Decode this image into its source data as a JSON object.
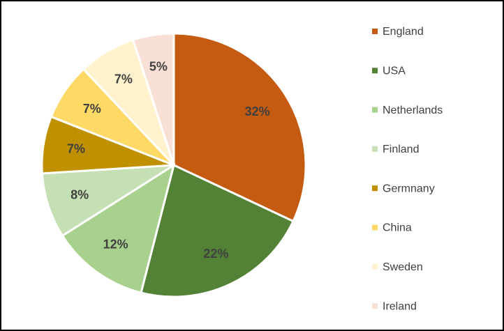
{
  "chart_data": {
    "type": "pie",
    "categories": [
      "England",
      "USA",
      "Netherlands",
      "Finland",
      "Germnany",
      "China",
      "Sweden",
      "Ireland"
    ],
    "values": [
      32,
      22,
      12,
      8,
      7,
      7,
      7,
      5
    ],
    "value_labels": [
      "32%",
      "22%",
      "12%",
      "8%",
      "7%",
      "7%",
      "7%",
      "5%"
    ],
    "colors": [
      "#c55a11",
      "#538135",
      "#a9d18e",
      "#c5e0b4",
      "#bf9000",
      "#ffd966",
      "#fff2cc",
      "#f8e0d6"
    ],
    "legend": "right"
  }
}
